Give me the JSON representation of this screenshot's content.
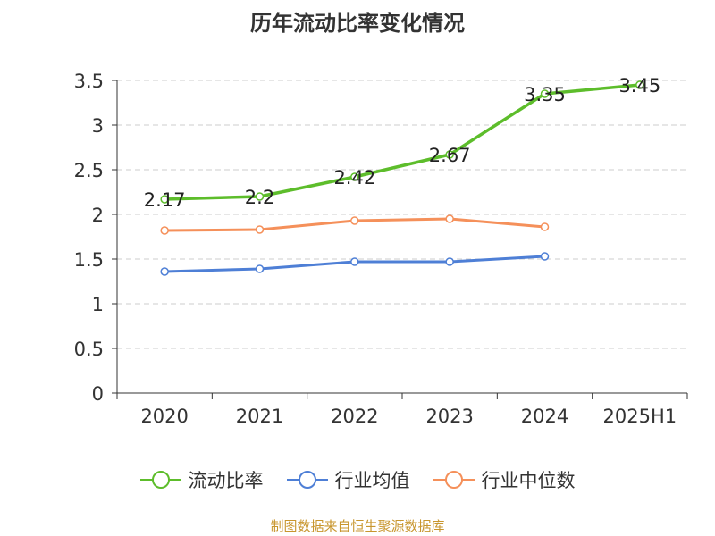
{
  "title": "历年流动比率变化情况",
  "source": "制图数据来自恒生聚源数据库",
  "chart_data": {
    "type": "line",
    "categories": [
      "2020",
      "2021",
      "2022",
      "2023",
      "2024",
      "2025H1"
    ],
    "ylim": [
      0,
      3.5
    ],
    "yticks": [
      0,
      0.5,
      1,
      1.5,
      2,
      2.5,
      3,
      3.5
    ],
    "ytick_labels": [
      "0",
      "0.5",
      "1",
      "1.5",
      "2",
      "2.5",
      "3",
      "3.5"
    ],
    "grid": true,
    "legend_position": "bottom",
    "series": [
      {
        "name": "流动比率",
        "color": "#5dbd2b",
        "values": [
          2.17,
          2.2,
          2.42,
          2.67,
          3.35,
          3.45
        ],
        "labels": [
          "2.17",
          "2.2",
          "2.42",
          "2.67",
          "3.35",
          "3.45"
        ]
      },
      {
        "name": "行业均值",
        "color": "#4e7fd6",
        "values": [
          1.36,
          1.39,
          1.47,
          1.47,
          1.53,
          null
        ]
      },
      {
        "name": "行业中位数",
        "color": "#f5905a",
        "values": [
          1.82,
          1.83,
          1.93,
          1.95,
          1.86,
          null
        ]
      }
    ]
  }
}
